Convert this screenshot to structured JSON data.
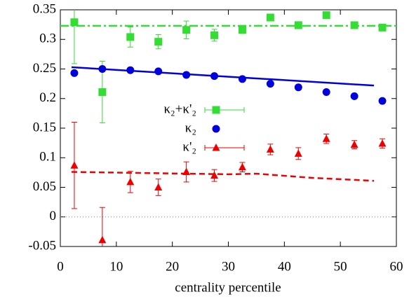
{
  "chart_data": {
    "type": "scatter",
    "xlabel": "centrality percentile",
    "xlim": [
      0,
      60
    ],
    "xticks": [
      0,
      10,
      20,
      30,
      40,
      50,
      60
    ],
    "ylim": [
      -0.05,
      0.35
    ],
    "yticks": [
      -0.05,
      0,
      0.05,
      0.1,
      0.15,
      0.2,
      0.25,
      0.3,
      0.35
    ],
    "legend": "upper center",
    "series": [
      {
        "name": "κ₂+κ'₂",
        "color": "#33dd33",
        "marker": "square",
        "x": [
          2.5,
          7.5,
          12.5,
          17.5,
          22.5,
          27.5,
          32.5,
          37.5,
          42.5,
          47.5,
          52.5,
          57.5
        ],
        "values": [
          0.329,
          0.211,
          0.304,
          0.296,
          0.316,
          0.307,
          0.316,
          0.337,
          0.324,
          0.341,
          0.324,
          0.32
        ],
        "errors": [
          0.07,
          0.052,
          0.017,
          0.012,
          0.015,
          0.01,
          0.006,
          0.005,
          0.006,
          0.005,
          0.005,
          0.005
        ]
      },
      {
        "name": "κ₂",
        "color": "#0000dd",
        "marker": "circle",
        "x": [
          2.5,
          7.5,
          12.5,
          17.5,
          22.5,
          27.5,
          32.5,
          37.5,
          42.5,
          47.5,
          52.5,
          57.5
        ],
        "values": [
          0.243,
          0.25,
          0.248,
          0.246,
          0.24,
          0.238,
          0.233,
          0.225,
          0.219,
          0.211,
          0.204,
          0.196
        ]
      },
      {
        "name": "κ'₂",
        "color": "#ee0000",
        "marker": "triangle",
        "x": [
          2.5,
          7.5,
          12.5,
          17.5,
          22.5,
          27.5,
          32.5,
          37.5,
          42.5,
          47.5,
          52.5,
          57.5
        ],
        "values": [
          0.087,
          -0.039,
          0.059,
          0.05,
          0.076,
          0.07,
          0.084,
          0.114,
          0.107,
          0.132,
          0.122,
          0.124
        ],
        "errors": [
          0.073,
          0.055,
          0.018,
          0.014,
          0.017,
          0.01,
          0.008,
          0.009,
          0.01,
          0.008,
          0.007,
          0.008
        ]
      }
    ],
    "lines": [
      {
        "color": "#33dd33",
        "dash": "12 4 3 4",
        "x": [
          0,
          60
        ],
        "values": [
          0.323,
          0.323
        ]
      },
      {
        "color": "#0000dd",
        "dash": "",
        "x": [
          2,
          56
        ],
        "values": [
          0.253,
          0.222
        ]
      },
      {
        "color": "#ee0000",
        "dash": "8 5",
        "x": [
          2,
          30,
          35,
          45,
          56
        ],
        "values": [
          0.076,
          0.072,
          0.073,
          0.066,
          0.061
        ]
      },
      {
        "color": "#888888",
        "dash": "1 3",
        "x": [
          0,
          60
        ],
        "values": [
          0,
          0
        ]
      }
    ]
  }
}
